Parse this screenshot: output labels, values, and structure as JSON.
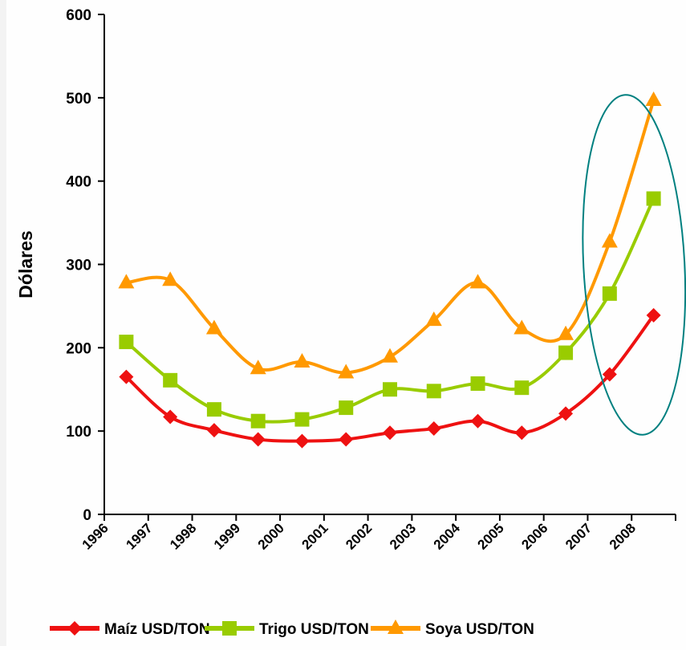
{
  "chart_data": {
    "type": "line",
    "title": "",
    "xlabel": "",
    "ylabel": "Dólares",
    "ylim": [
      0,
      600
    ],
    "yticks": [
      0,
      100,
      200,
      300,
      400,
      500,
      600
    ],
    "ytick_labels": [
      "0",
      "100",
      "200",
      "300",
      "400",
      "500",
      "600"
    ],
    "categories": [
      "1996",
      "1997",
      "1998",
      "1999",
      "2000",
      "2001",
      "2002",
      "2003",
      "2004",
      "2005",
      "2006",
      "2007",
      "2008"
    ],
    "grid": false,
    "legend_position": "bottom",
    "series": [
      {
        "name": "Maíz USD/TON",
        "color": "#ee1111",
        "marker": "diamond",
        "values": [
          165,
          117,
          101,
          90,
          88,
          90,
          98,
          103,
          112,
          98,
          121,
          168,
          239
        ]
      },
      {
        "name": "Trigo USD/TON",
        "color": "#99cc00",
        "marker": "square",
        "values": [
          207,
          161,
          126,
          112,
          114,
          128,
          150,
          148,
          157,
          152,
          194,
          265,
          379
        ]
      },
      {
        "name": "Soya USD/TON",
        "color": "#ff9900",
        "marker": "triangle",
        "values": [
          278,
          281,
          223,
          175,
          183,
          170,
          189,
          233,
          278,
          223,
          216,
          327,
          497
        ]
      }
    ],
    "annotations": [
      {
        "type": "ellipse",
        "color": "#008080",
        "around": "2007–2008"
      }
    ]
  }
}
